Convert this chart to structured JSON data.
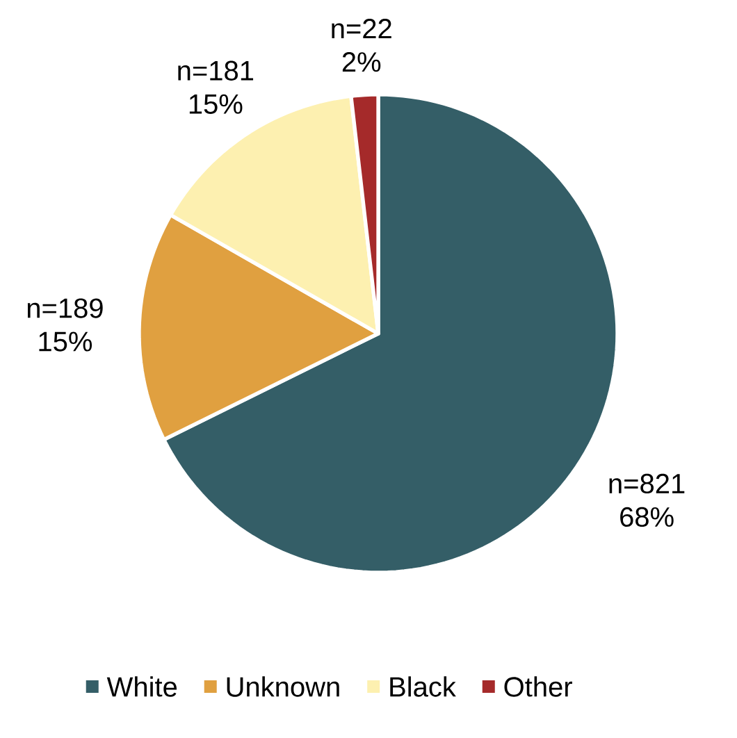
{
  "chart_data": {
    "type": "pie",
    "categories": [
      "White",
      "Unknown",
      "Black",
      "Other"
    ],
    "values": [
      821,
      189,
      181,
      22
    ],
    "value_labels": [
      "n=821 68%",
      "n=189 15%",
      "n=181 15%",
      "n=22 2%"
    ],
    "colors": [
      "#345e67",
      "#e0a040",
      "#fdf0b0",
      "#a52a2a"
    ],
    "legend": "bottom"
  }
}
